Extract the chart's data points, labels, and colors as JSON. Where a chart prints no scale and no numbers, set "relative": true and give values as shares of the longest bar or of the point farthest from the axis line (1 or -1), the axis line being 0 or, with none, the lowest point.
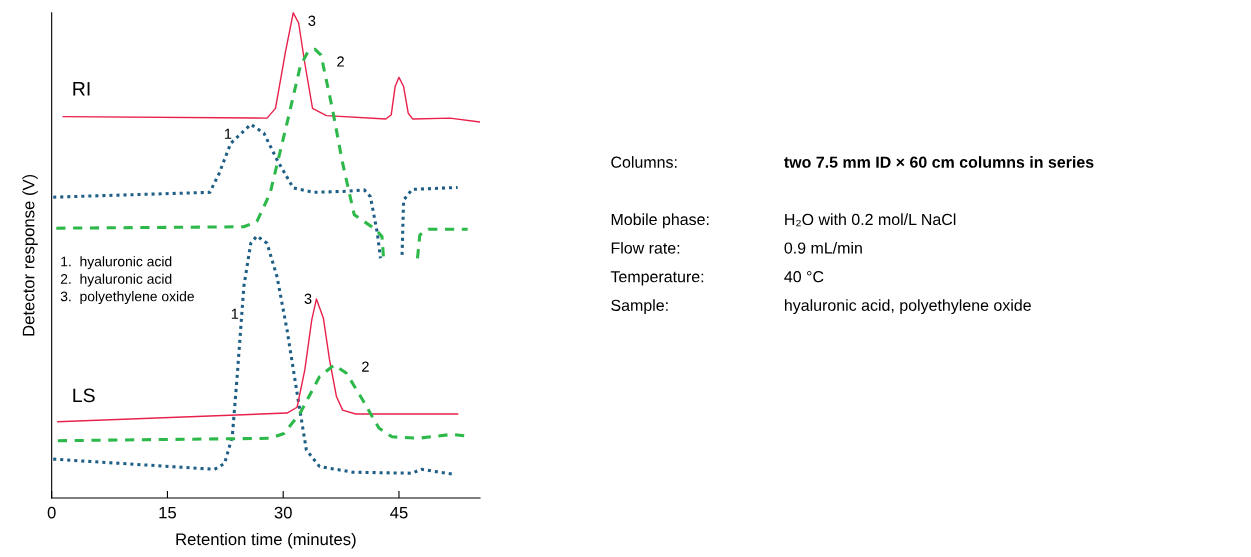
{
  "chart_data": [
    {
      "type": "line",
      "relative": true,
      "xlabel": "Retention time (minutes)",
      "ylabel": "Detector response (V)",
      "xlim": [
        0,
        55.5
      ],
      "xticks": [
        0,
        15,
        30,
        45
      ],
      "grid": false,
      "legend": false,
      "marker": "none",
      "series": [
        {
          "color": "#e8204a",
          "line_style": "solid",
          "x": [
            1.5,
            27.9,
            29.0,
            30.3,
            31.3,
            32.0,
            32.8,
            33.8,
            35.6,
            43.3,
            44.0,
            44.5,
            45.0,
            45.6,
            46.2,
            46.8,
            51.6,
            55.4
          ],
          "values": [
            0.786,
            0.783,
            0.803,
            0.92,
            1.0,
            0.979,
            0.896,
            0.803,
            0.788,
            0.781,
            0.79,
            0.848,
            0.867,
            0.848,
            0.793,
            0.781,
            0.783,
            0.775
          ]
        },
        {
          "color": "#1f5f86",
          "line_style": "dotted",
          "x": [
            0.2,
            20.5,
            21.7,
            23.2,
            25.8,
            27.5,
            29.2,
            31.3,
            33.9,
            38.1,
            40.5,
            41.3,
            42.2,
            42.6,
            44.0,
            45.4,
            45.6,
            46.7,
            52.6
          ],
          "values": [
            0.62,
            0.63,
            0.669,
            0.731,
            0.77,
            0.752,
            0.697,
            0.639,
            0.63,
            0.632,
            0.635,
            0.621,
            0.546,
            0.494,
            null,
            0.501,
            0.614,
            0.636,
            0.64
          ]
        },
        {
          "color": "#2db84a",
          "line_style": "dashed",
          "x": [
            0.6,
            24.9,
            26.6,
            28.3,
            30.5,
            32.2,
            33.2,
            34.1,
            34.9,
            36.4,
            37.7,
            39.2,
            42.0,
            42.8,
            43.0,
            45.0,
            47.4,
            47.7,
            48.8,
            53.9
          ],
          "values": [
            0.556,
            0.559,
            0.57,
            0.628,
            0.773,
            0.889,
            0.92,
            0.925,
            0.913,
            0.8,
            0.69,
            0.584,
            0.553,
            0.539,
            0.494,
            null,
            0.494,
            0.542,
            0.554,
            0.554
          ]
        },
        {
          "color": "#1f5f86",
          "line_style": "dotted",
          "x": [
            0.2,
            21.1,
            22.4,
            23.4,
            24.1,
            24.9,
            25.8,
            26.6,
            27.9,
            29.2,
            30.5,
            31.8,
            33.0,
            34.7,
            39.0,
            46.7,
            47.9,
            52.0
          ],
          "values": [
            0.08,
            0.059,
            0.071,
            0.126,
            0.264,
            0.436,
            0.525,
            0.54,
            0.525,
            0.456,
            0.346,
            0.216,
            0.099,
            0.065,
            0.053,
            0.051,
            0.059,
            0.049
          ]
        },
        {
          "color": "#e8204a",
          "line_style": "solid",
          "x": [
            0.8,
            30.5,
            31.8,
            32.8,
            33.7,
            34.3,
            35.2,
            36.0,
            36.9,
            37.7,
            39.4,
            52.6
          ],
          "values": [
            0.157,
            0.175,
            0.187,
            0.264,
            0.367,
            0.41,
            0.371,
            0.285,
            0.209,
            0.181,
            0.173,
            0.173
          ]
        },
        {
          "color": "#2db84a",
          "line_style": "dashed",
          "x": [
            0.8,
            28.3,
            30.1,
            32.2,
            34.7,
            36.6,
            38.2,
            40.3,
            42.4,
            44.1,
            47.5,
            51.8,
            53.7
          ],
          "values": [
            0.118,
            0.123,
            0.133,
            0.175,
            0.25,
            0.274,
            0.257,
            0.202,
            0.144,
            0.126,
            0.123,
            0.131,
            0.128
          ]
        }
      ],
      "annotations": [
        "RI",
        "LS",
        "3",
        "2",
        "1",
        "3",
        "1",
        "2",
        "1.  hyaluronic acid",
        "2.  hyaluronic acid",
        "3.  polyethylene oxide"
      ]
    },
    {
      "type": "other",
      "annotations": [
        "Columns:",
        "two 7.5 mm ID × 60 cm columns in series",
        "Mobile phase:",
        "H₂O with 0.2 mol/L NaCl",
        "Flow rate:",
        "0.9 mL/min",
        "Temperature:",
        "40 °C",
        "Sample:",
        "hyaluronic acid, polyethylene oxide"
      ]
    }
  ]
}
